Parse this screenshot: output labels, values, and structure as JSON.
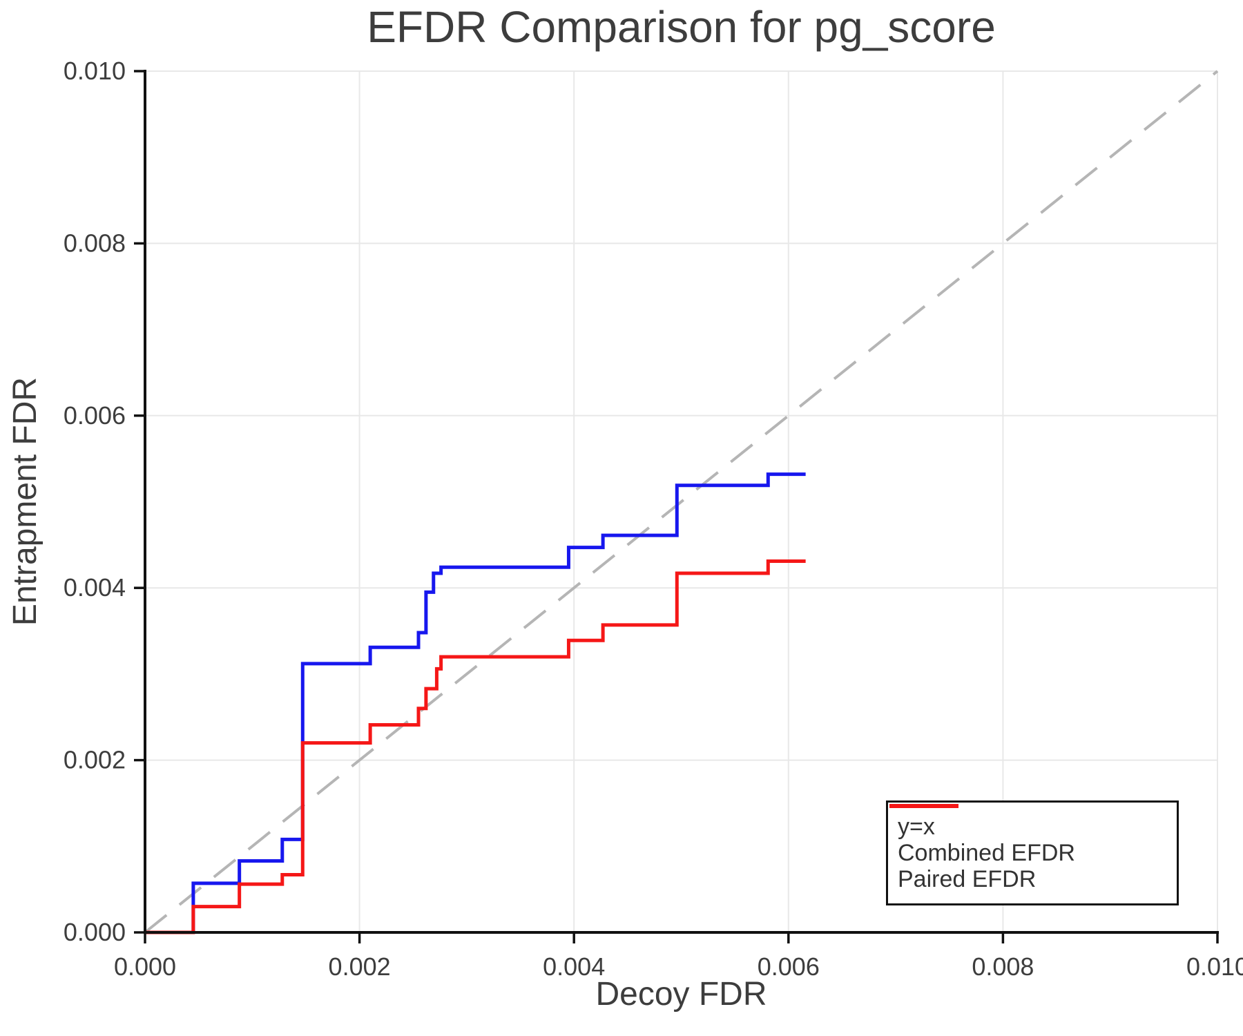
{
  "chart_data": {
    "type": "line",
    "title": "EFDR Comparison for pg_score",
    "xlabel": "Decoy FDR",
    "ylabel": "Entrapment FDR",
    "xlim": [
      0.0,
      0.01
    ],
    "ylim": [
      0.0,
      0.01
    ],
    "xtick_values": [
      0.0,
      0.002,
      0.004,
      0.006,
      0.008,
      0.01
    ],
    "xtick_labels": [
      "0.000",
      "0.002",
      "0.004",
      "0.006",
      "0.008",
      "0.010"
    ],
    "ytick_values": [
      0.0,
      0.002,
      0.004,
      0.006,
      0.008,
      0.01
    ],
    "ytick_labels": [
      "0.000",
      "0.002",
      "0.004",
      "0.006",
      "0.008",
      "0.010"
    ],
    "grid": true,
    "legend_position": "bottom-right",
    "series": [
      {
        "name": "y=x",
        "style": "dashed",
        "step": false,
        "color": "#b5b5b5",
        "stroke_width": 4,
        "points": [
          [
            0.0,
            0.0
          ],
          [
            0.01,
            0.01
          ]
        ]
      },
      {
        "name": "Combined EFDR",
        "style": "solid",
        "step": true,
        "color": "#1717ee",
        "stroke_width": 5,
        "points": [
          [
            0.0,
            0.0
          ],
          [
            0.00045,
            0.00057
          ],
          [
            0.00088,
            0.00083
          ],
          [
            0.00128,
            0.00108
          ],
          [
            0.00147,
            0.00312
          ],
          [
            0.0021,
            0.00331
          ],
          [
            0.00255,
            0.00348
          ],
          [
            0.00262,
            0.00395
          ],
          [
            0.00269,
            0.00417
          ],
          [
            0.00276,
            0.00424
          ],
          [
            0.00395,
            0.00447
          ],
          [
            0.00427,
            0.00461
          ],
          [
            0.00496,
            0.00519
          ],
          [
            0.00581,
            0.00532
          ],
          [
            0.00616,
            0.00532
          ]
        ]
      },
      {
        "name": "Paired EFDR",
        "style": "solid",
        "step": true,
        "color": "#f51717",
        "stroke_width": 5,
        "points": [
          [
            0.0,
            0.0
          ],
          [
            0.00045,
            0.0003
          ],
          [
            0.00088,
            0.00056
          ],
          [
            0.00128,
            0.00067
          ],
          [
            0.00147,
            0.0022
          ],
          [
            0.0021,
            0.00241
          ],
          [
            0.00255,
            0.0026
          ],
          [
            0.00262,
            0.00283
          ],
          [
            0.00272,
            0.00306
          ],
          [
            0.00276,
            0.0032
          ],
          [
            0.00395,
            0.00339
          ],
          [
            0.00427,
            0.00357
          ],
          [
            0.00496,
            0.00417
          ],
          [
            0.00581,
            0.00431
          ],
          [
            0.00616,
            0.00431
          ]
        ]
      }
    ],
    "colors": {
      "axis": "#111111",
      "grid": "#e8e8e8",
      "text": "#3d3d3d",
      "background": "#ffffff"
    }
  }
}
